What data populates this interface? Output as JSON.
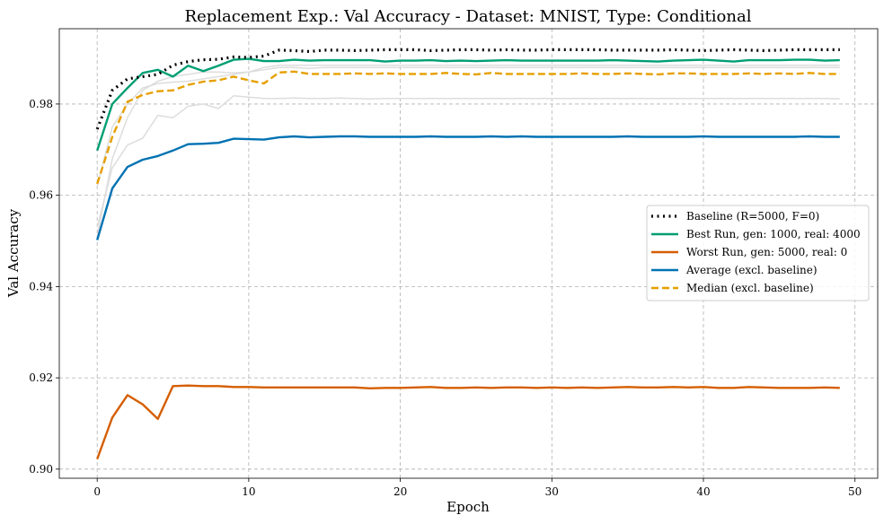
{
  "chart_data": {
    "type": "line",
    "title": "Replacement Exp.: Val Accuracy - Dataset: MNIST, Type: Conditional",
    "xlabel": "Epoch",
    "ylabel": "Val Accuracy",
    "xlim": [
      -2.5,
      51.5
    ],
    "ylim": [
      0.898,
      0.9965
    ],
    "xticks": [
      0,
      10,
      20,
      30,
      40,
      50
    ],
    "xtick_labels": [
      "0",
      "10",
      "20",
      "30",
      "40",
      "50"
    ],
    "yticks": [
      0.9,
      0.92,
      0.94,
      0.96,
      0.98
    ],
    "ytick_labels": [
      "0.90",
      "0.92",
      "0.94",
      "0.96",
      "0.98"
    ],
    "grid": true,
    "legend_position": "center-right",
    "x": [
      0,
      1,
      2,
      3,
      4,
      5,
      6,
      7,
      8,
      9,
      10,
      11,
      12,
      13,
      14,
      15,
      16,
      17,
      18,
      19,
      20,
      21,
      22,
      23,
      24,
      25,
      26,
      27,
      28,
      29,
      30,
      31,
      32,
      33,
      34,
      35,
      36,
      37,
      38,
      39,
      40,
      41,
      42,
      43,
      44,
      45,
      46,
      47,
      48,
      49
    ],
    "background_series": [
      {
        "color": "#dddddd",
        "values": [
          0.951,
          0.968,
          0.977,
          0.983,
          0.985,
          0.986,
          0.9865,
          0.987,
          0.987,
          0.9868,
          0.987,
          0.9875,
          0.988,
          0.988,
          0.9878,
          0.988,
          0.988,
          0.988,
          0.988,
          0.988,
          0.988,
          0.988,
          0.988,
          0.988,
          0.988,
          0.988,
          0.988,
          0.988,
          0.988,
          0.988,
          0.988,
          0.988,
          0.988,
          0.988,
          0.988,
          0.988,
          0.988,
          0.988,
          0.988,
          0.988,
          0.988,
          0.988,
          0.988,
          0.988,
          0.988,
          0.988,
          0.988,
          0.988,
          0.988,
          0.988
        ]
      },
      {
        "color": "#dddddd",
        "values": [
          0.953,
          0.966,
          0.971,
          0.9725,
          0.9775,
          0.977,
          0.9795,
          0.98,
          0.979,
          0.9818,
          0.9815,
          0.9812,
          0.9812,
          0.9813,
          0.9812,
          0.9812,
          0.9813,
          0.9812,
          0.9811,
          0.9812,
          0.9812,
          0.9812,
          0.9812,
          0.9812,
          0.9812,
          0.9812,
          0.9812,
          0.9812,
          0.9812,
          0.9812,
          0.9812,
          0.9812,
          0.9812,
          0.9812,
          0.9812,
          0.9812,
          0.9812,
          0.9812,
          0.9812,
          0.9812,
          0.9812,
          0.9812,
          0.9812,
          0.9812,
          0.9812,
          0.9812,
          0.9812,
          0.9812,
          0.9812,
          0.9811
        ]
      },
      {
        "color": "#dddddd",
        "values": [
          0.962,
          0.975,
          0.98,
          0.9835,
          0.9845,
          0.9848,
          0.985,
          0.9855,
          0.986,
          0.9865,
          0.987,
          0.988,
          0.9885,
          0.9885,
          0.9885,
          0.9885,
          0.9885,
          0.9885,
          0.9885,
          0.9885,
          0.9885,
          0.9885,
          0.9885,
          0.9885,
          0.9885,
          0.9885,
          0.9885,
          0.9885,
          0.9885,
          0.9885,
          0.9885,
          0.9885,
          0.9885,
          0.9885,
          0.9885,
          0.9885,
          0.9885,
          0.9885,
          0.9885,
          0.9885,
          0.9885,
          0.9885,
          0.9885,
          0.9885,
          0.9885,
          0.9885,
          0.9885,
          0.9885,
          0.9885,
          0.9885
        ]
      }
    ],
    "series": [
      {
        "name": "Baseline (R=5000, F=0)",
        "color": "#000000",
        "dash": "dot",
        "width": 3.2,
        "values": [
          0.9745,
          0.983,
          0.9855,
          0.986,
          0.9865,
          0.9885,
          0.9893,
          0.9897,
          0.9898,
          0.9903,
          0.9902,
          0.9905,
          0.9918,
          0.9917,
          0.9915,
          0.9918,
          0.9918,
          0.9917,
          0.9918,
          0.9919,
          0.9919,
          0.9919,
          0.9917,
          0.9918,
          0.9919,
          0.9919,
          0.9918,
          0.9919,
          0.9918,
          0.9918,
          0.9919,
          0.9919,
          0.9919,
          0.9919,
          0.9918,
          0.9918,
          0.9918,
          0.9918,
          0.9919,
          0.9918,
          0.9917,
          0.9918,
          0.9919,
          0.9918,
          0.9917,
          0.9918,
          0.9919,
          0.9919,
          0.9919,
          0.9919
        ]
      },
      {
        "name": "Best Run, gen: 1000, real: 4000",
        "color": "#009E73",
        "dash": "solid",
        "width": 2.4,
        "values": [
          0.9698,
          0.98,
          0.9835,
          0.9868,
          0.9875,
          0.986,
          0.9884,
          0.9872,
          0.9884,
          0.9897,
          0.9899,
          0.9894,
          0.9894,
          0.9897,
          0.9895,
          0.9896,
          0.9896,
          0.9896,
          0.9896,
          0.9893,
          0.9895,
          0.9895,
          0.9896,
          0.9894,
          0.9895,
          0.9894,
          0.9895,
          0.9896,
          0.9895,
          0.9895,
          0.9895,
          0.9895,
          0.9895,
          0.9895,
          0.9896,
          0.9895,
          0.9894,
          0.9893,
          0.9895,
          0.9896,
          0.9897,
          0.9895,
          0.9893,
          0.9896,
          0.9896,
          0.9896,
          0.9897,
          0.9897,
          0.9895,
          0.9896
        ]
      },
      {
        "name": "Worst Run, gen: 5000, real: 0",
        "color": "#D55E00",
        "dash": "solid",
        "width": 2.4,
        "values": [
          0.9022,
          0.9113,
          0.9162,
          0.9142,
          0.911,
          0.9182,
          0.9183,
          0.9182,
          0.9182,
          0.918,
          0.918,
          0.9179,
          0.9179,
          0.9179,
          0.9179,
          0.9179,
          0.9179,
          0.9179,
          0.9177,
          0.9178,
          0.9178,
          0.9179,
          0.918,
          0.9178,
          0.9178,
          0.9179,
          0.9178,
          0.9179,
          0.9179,
          0.9178,
          0.9179,
          0.9178,
          0.9179,
          0.9178,
          0.9179,
          0.918,
          0.9179,
          0.9179,
          0.918,
          0.9179,
          0.918,
          0.9178,
          0.9178,
          0.918,
          0.9179,
          0.9178,
          0.9178,
          0.9178,
          0.9179,
          0.9178
        ]
      },
      {
        "name": "Average (excl. baseline)",
        "color": "#0072B2",
        "dash": "solid",
        "width": 2.4,
        "values": [
          0.9502,
          0.9615,
          0.9662,
          0.9678,
          0.9686,
          0.9698,
          0.9712,
          0.9713,
          0.9715,
          0.9724,
          0.9723,
          0.9722,
          0.9727,
          0.9729,
          0.9727,
          0.9728,
          0.9729,
          0.9729,
          0.9728,
          0.9728,
          0.9728,
          0.9728,
          0.9729,
          0.9728,
          0.9728,
          0.9728,
          0.9729,
          0.9728,
          0.9729,
          0.9728,
          0.9728,
          0.9728,
          0.9728,
          0.9728,
          0.9728,
          0.9729,
          0.9728,
          0.9728,
          0.9728,
          0.9728,
          0.9729,
          0.9728,
          0.9728,
          0.9728,
          0.9728,
          0.9728,
          0.9728,
          0.9729,
          0.9728,
          0.9728
        ]
      },
      {
        "name": "Median (excl. baseline)",
        "color": "#E69F00",
        "dash": "dash",
        "width": 2.4,
        "values": [
          0.9625,
          0.9728,
          0.9805,
          0.982,
          0.9828,
          0.983,
          0.9842,
          0.9849,
          0.9852,
          0.986,
          0.9852,
          0.9845,
          0.9869,
          0.9871,
          0.9866,
          0.9866,
          0.9866,
          0.9867,
          0.9866,
          0.9867,
          0.9866,
          0.9866,
          0.9866,
          0.9868,
          0.9866,
          0.9865,
          0.9868,
          0.9866,
          0.9866,
          0.9866,
          0.9866,
          0.9866,
          0.9867,
          0.9866,
          0.9866,
          0.9867,
          0.9866,
          0.9865,
          0.9867,
          0.9867,
          0.9866,
          0.9866,
          0.9866,
          0.9867,
          0.9866,
          0.9867,
          0.9866,
          0.9868,
          0.9866,
          0.9866
        ]
      }
    ]
  }
}
